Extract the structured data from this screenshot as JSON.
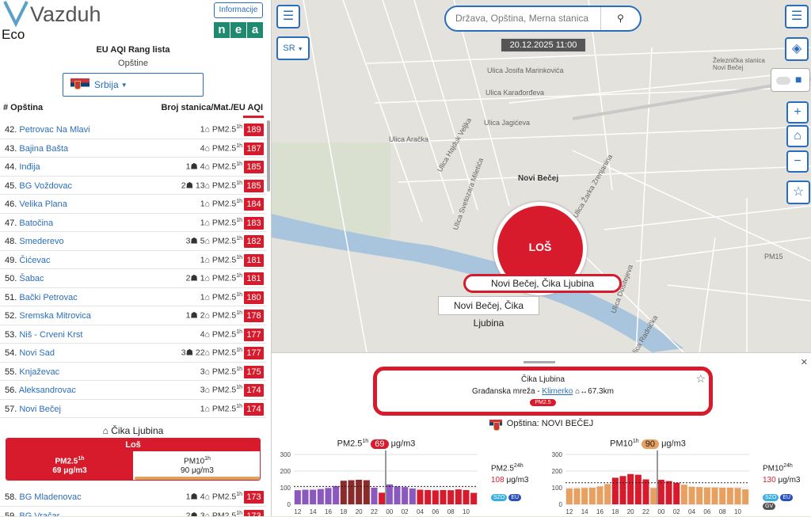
{
  "app": {
    "title_v": "Vazduh",
    "title_eco": "Eco",
    "info_button": "Informacije",
    "nea_letters": [
      "n",
      "e",
      "a"
    ]
  },
  "ranking": {
    "title": "EU AQI Rang lista",
    "subtitle": "Opštine",
    "country": "Srbija",
    "col_left": "# Opština",
    "col_right": "Broj stanica/Mat./EU AQI"
  },
  "rows": [
    {
      "num": "42.",
      "city": "Petrovac Na Mlavi",
      "meta": "1⌂ PM2.5",
      "sup": "1h",
      "aqi": "189"
    },
    {
      "num": "43.",
      "city": "Bajina Bašta",
      "meta": "4⌂ PM2.5",
      "sup": "1h",
      "aqi": "187"
    },
    {
      "num": "44.",
      "city": "Inđija",
      "meta": "1☗ 4⌂ PM2.5",
      "sup": "1h",
      "aqi": "185"
    },
    {
      "num": "45.",
      "city": "BG Voždovac",
      "meta": "2☗ 13⌂ PM2.5",
      "sup": "1h",
      "aqi": "185"
    },
    {
      "num": "46.",
      "city": "Velika Plana",
      "meta": "1⌂ PM2.5",
      "sup": "1h",
      "aqi": "184"
    },
    {
      "num": "47.",
      "city": "Batočina",
      "meta": "1⌂ PM2.5",
      "sup": "1h",
      "aqi": "183"
    },
    {
      "num": "48.",
      "city": "Smederevo",
      "meta": "3☗ 5⌂ PM2.5",
      "sup": "1h",
      "aqi": "182"
    },
    {
      "num": "49.",
      "city": "Čićevac",
      "meta": "1⌂ PM2.5",
      "sup": "1h",
      "aqi": "181"
    },
    {
      "num": "50.",
      "city": "Šabac",
      "meta": "2☗ 1⌂ PM2.5",
      "sup": "1h",
      "aqi": "181"
    },
    {
      "num": "51.",
      "city": "Bački Petrovac",
      "meta": "1⌂ PM2.5",
      "sup": "1h",
      "aqi": "180"
    },
    {
      "num": "52.",
      "city": "Sremska Mitrovica",
      "meta": "1☗ 2⌂ PM2.5",
      "sup": "1h",
      "aqi": "178"
    },
    {
      "num": "53.",
      "city": "Niš - Crveni Krst",
      "meta": "4⌂ PM2.5",
      "sup": "1h",
      "aqi": "177"
    },
    {
      "num": "54.",
      "city": "Novi Sad",
      "meta": "3☗ 22⌂ PM2.5",
      "sup": "1h",
      "aqi": "177"
    },
    {
      "num": "55.",
      "city": "Knjaževac",
      "meta": "3⌂ PM2.5",
      "sup": "1h",
      "aqi": "175"
    },
    {
      "num": "56.",
      "city": "Aleksandrovac",
      "meta": "3⌂ PM2.5",
      "sup": "1h",
      "aqi": "174"
    },
    {
      "num": "57.",
      "city": "Novi Bečej",
      "meta": "1⌂ PM2.5",
      "sup": "1h",
      "aqi": "174"
    }
  ],
  "station": {
    "name": "Čika Ljubina",
    "status": "Loš",
    "pm25_label": "PM2.5",
    "pm25_sup": "1h",
    "pm25_value": "69 μg/m3",
    "pm10_label": "PM10",
    "pm10_sup": "1h",
    "pm10_value": "90 μg/m3"
  },
  "rows_after": [
    {
      "num": "58.",
      "city": "BG Mladenovac",
      "meta": "1☗ 4⌂ PM2.5",
      "sup": "1h",
      "aqi": "173"
    },
    {
      "num": "59.",
      "city": "BG Vračar",
      "meta": "2☗ 3⌂ PM2.5",
      "sup": "1h",
      "aqi": "173"
    }
  ],
  "map": {
    "search_placeholder": "Država, Opština, Merna stanica",
    "datetime": "20.12.2025 11:00",
    "lang": "SR",
    "marker_status": "LOŠ",
    "marker_label": "Novi Bečej, Čika Ljubina",
    "tooltip": "Novi Bečej, Čika Ljubina",
    "place_name": "Novi Bečej",
    "streets": [
      "Ulica Josifa Marinkovića",
      "Ulica Karađorđeva",
      "Ulica Jagićeva",
      "Ulica Aračka",
      "Ulica Hajduk Veljka",
      "Ulica Svetozara Miletića",
      "Železnička stanica Novi Bečej",
      "Ulica Žarka Zrenjanina",
      "Ulica Dositejeva",
      "Ulica Radnička",
      "PM15"
    ]
  },
  "panel": {
    "station": "Čika Ljubina",
    "network": "Građanska mreža - ",
    "network_link": "Klimerko",
    "distance": "⌂↔67.3km",
    "pill": "PM2.5",
    "opstina": "Opština: NOVI BEČEJ"
  },
  "charts": [
    {
      "pollutant": "PM2.5",
      "sup": "1h",
      "value": "69",
      "unit": "μg/m3",
      "side_label": "PM2.5",
      "side_sup": "24h",
      "side_value": "108",
      "side_unit": "μg/m3",
      "badges": [
        "SZO",
        "EU"
      ]
    },
    {
      "pollutant": "PM10",
      "sup": "1h",
      "value": "90",
      "unit": "μg/m3",
      "side_label": "PM10",
      "side_sup": "24h",
      "side_value": "130",
      "side_unit": "μg/m3",
      "badges": [
        "SZO",
        "EU",
        "GV"
      ]
    }
  ],
  "chart_data": [
    {
      "type": "bar",
      "title": "PM2.5 1h 69 μg/m3",
      "categories": [
        "12",
        "13",
        "14",
        "15",
        "16",
        "17",
        "18",
        "19",
        "20",
        "21",
        "22",
        "23",
        "00",
        "01",
        "02",
        "03",
        "04",
        "05",
        "06",
        "07",
        "08",
        "09",
        "10",
        "11"
      ],
      "values": [
        85,
        88,
        88,
        92,
        98,
        110,
        142,
        145,
        148,
        145,
        100,
        70,
        120,
        108,
        104,
        95,
        88,
        86,
        84,
        86,
        85,
        90,
        86,
        69
      ],
      "colors": [
        "#8b58c0",
        "#8b58c0",
        "#8b58c0",
        "#8b58c0",
        "#8b58c0",
        "#8b58c0",
        "#8b2a2a",
        "#8b2a2a",
        "#8b2a2a",
        "#8b2a2a",
        "#8b58c0",
        "#d81b2c",
        "#8b58c0",
        "#8b58c0",
        "#8b58c0",
        "#8b58c0",
        "#d81b2c",
        "#d81b2c",
        "#d81b2c",
        "#d81b2c",
        "#d81b2c",
        "#d81b2c",
        "#d81b2c",
        "#d81b2c"
      ],
      "ylim": [
        0,
        300
      ],
      "yticks": [
        "300",
        "200",
        "100",
        "0"
      ],
      "xticks": [
        "12",
        "14",
        "16",
        "18",
        "20",
        "22",
        "00",
        "02",
        "04",
        "06",
        "08",
        "10"
      ],
      "ref_line": 108
    },
    {
      "type": "bar",
      "title": "PM10 1h 90 μg/m3",
      "categories": [
        "12",
        "13",
        "14",
        "15",
        "16",
        "17",
        "18",
        "19",
        "20",
        "21",
        "22",
        "23",
        "00",
        "01",
        "02",
        "03",
        "04",
        "05",
        "06",
        "07",
        "08",
        "09",
        "10",
        "11"
      ],
      "values": [
        95,
        96,
        98,
        100,
        108,
        122,
        160,
        170,
        182,
        178,
        150,
        98,
        148,
        140,
        130,
        118,
        106,
        104,
        102,
        102,
        100,
        100,
        98,
        90
      ],
      "colors": [
        "#e8a060",
        "#e8a060",
        "#e8a060",
        "#e8a060",
        "#e8a060",
        "#e8a060",
        "#d81b2c",
        "#d81b2c",
        "#d81b2c",
        "#d81b2c",
        "#d81b2c",
        "#e8a060",
        "#d81b2c",
        "#d81b2c",
        "#d81b2c",
        "#e8a060",
        "#e8a060",
        "#e8a060",
        "#e8a060",
        "#e8a060",
        "#e8a060",
        "#e8a060",
        "#e8a060",
        "#e8a060"
      ],
      "ylim": [
        0,
        300
      ],
      "yticks": [
        "300",
        "200",
        "100",
        "0"
      ],
      "xticks": [
        "12",
        "14",
        "16",
        "18",
        "20",
        "22",
        "00",
        "02",
        "04",
        "06",
        "08",
        "10"
      ],
      "ref_line": 130
    }
  ]
}
